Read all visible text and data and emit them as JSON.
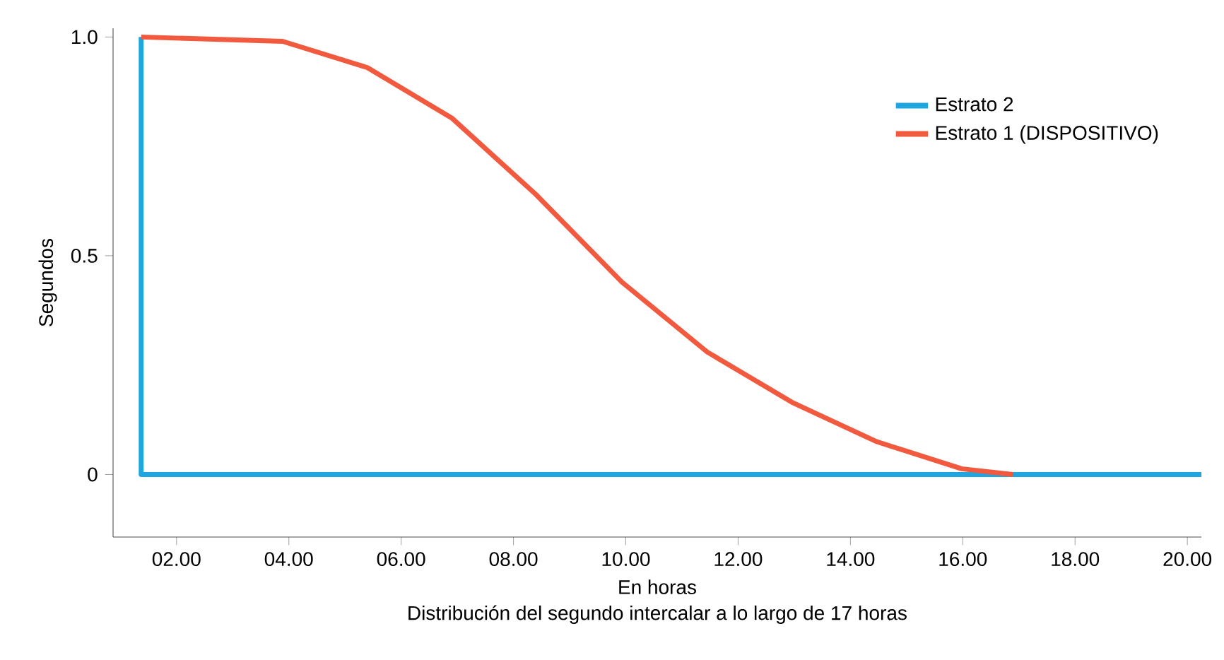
{
  "chart_data": {
    "type": "line",
    "xlabel": "En horas",
    "ylabel": "Segundos",
    "annotations": [
      "Distribución del segundo intercalar a lo largo de 17 horas"
    ],
    "xlim": [
      0.87,
      20.25
    ],
    "ylim": [
      -0.143,
      1.02
    ],
    "xticks": [
      {
        "value": 2,
        "label": "02.00"
      },
      {
        "value": 4,
        "label": "04.00"
      },
      {
        "value": 6,
        "label": "06.00"
      },
      {
        "value": 8,
        "label": "08.00"
      },
      {
        "value": 10,
        "label": "10.00"
      },
      {
        "value": 12,
        "label": "12.00"
      },
      {
        "value": 14,
        "label": "14.00"
      },
      {
        "value": 16,
        "label": "16.00"
      },
      {
        "value": 18,
        "label": "18.00"
      },
      {
        "value": 20,
        "label": "20.00"
      }
    ],
    "yticks": [
      0,
      {
        "value": 0.5,
        "label": "0.5"
      },
      {
        "value": 1,
        "label": "1.0"
      }
    ],
    "grid": false,
    "legend": "top right",
    "marker": "none",
    "line_style": "solid",
    "series": [
      {
        "name": "Estrato 2",
        "color": "#1ea6e0",
        "x": [
          1.37,
          1.37,
          20.25
        ],
        "values": [
          1,
          0,
          0
        ]
      },
      {
        "name": "Estrato 1 (DISPOSITIVO)",
        "color": "#f15a3f",
        "x": [
          1.37,
          3.89,
          5.4,
          6.9,
          8.4,
          9.93,
          11.45,
          12.96,
          14.47,
          15.98,
          16.89
        ],
        "values": [
          1,
          0.99,
          0.93,
          0.815,
          0.64,
          0.44,
          0.28,
          0.165,
          0.075,
          0.013,
          0
        ]
      }
    ]
  }
}
